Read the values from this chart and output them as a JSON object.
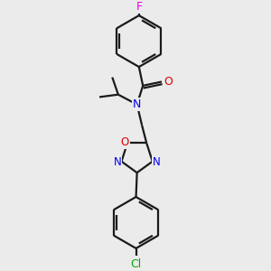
{
  "background_color": "#ebebeb",
  "bond_color": "#1a1a1a",
  "atom_colors": {
    "F": "#ee00ee",
    "O": "#dd0000",
    "N": "#0000ee",
    "Cl": "#00aa00",
    "C": "#1a1a1a"
  },
  "figsize": [
    3.0,
    3.0
  ],
  "dpi": 100,
  "lw": 1.6
}
